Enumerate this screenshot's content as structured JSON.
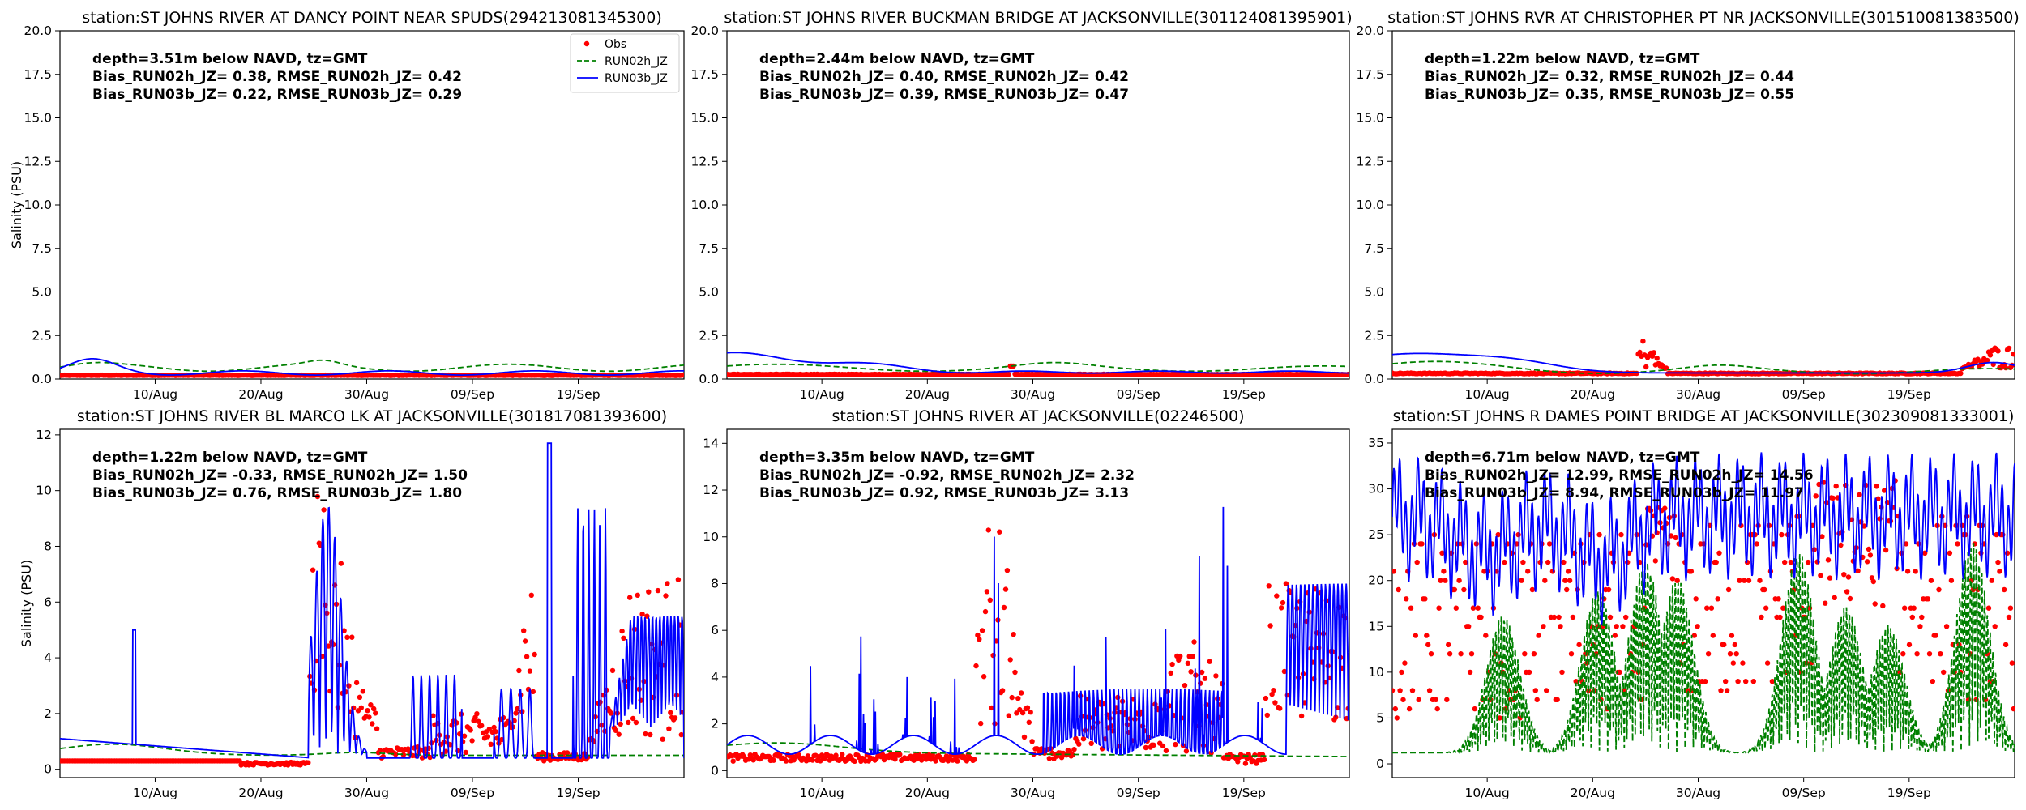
{
  "chart_data": {
    "type": "line",
    "ylabel": "Salinity (PSU)",
    "legend": {
      "placement": "top-right",
      "entries": [
        {
          "label": "Obs",
          "style": "red dots",
          "color": "#ff0000"
        },
        {
          "label": "RUN02h_JZ",
          "style": "green dashed",
          "color": "#008000"
        },
        {
          "label": "RUN03b_JZ",
          "style": "blue solid",
          "color": "#0000ff"
        }
      ]
    },
    "x_ticks": [
      "10/Aug",
      "20/Aug",
      "30/Aug",
      "09/Sep",
      "19/Sep"
    ],
    "x_tick_days": [
      9,
      19,
      29,
      39,
      49
    ],
    "x_range_days": [
      0,
      59
    ],
    "panels": [
      {
        "title": "station:ST JOHNS RIVER AT DANCY POINT NEAR SPUDS(294213081345300)",
        "stats": [
          "depth=3.51m below NAVD, tz=GMT",
          "Bias_RUN02h_JZ=  0.38, RMSE_RUN02h_JZ=  0.42",
          "Bias_RUN03b_JZ=  0.22, RMSE_RUN03b_JZ=  0.29"
        ],
        "ylim": [
          0,
          20
        ],
        "yticks": [
          "0.0",
          "2.5",
          "5.0",
          "7.5",
          "10.0",
          "12.5",
          "15.0",
          "17.5",
          "20.0"
        ],
        "show_ylabel": true,
        "show_legend": true,
        "profile": "dancy"
      },
      {
        "title": "station:ST JOHNS RIVER BUCKMAN BRIDGE AT JACKSONVILLE(301124081395901)",
        "stats": [
          "depth=2.44m below NAVD, tz=GMT",
          "Bias_RUN02h_JZ=  0.40, RMSE_RUN02h_JZ=  0.42",
          "Bias_RUN03b_JZ=  0.39, RMSE_RUN03b_JZ=  0.47"
        ],
        "ylim": [
          0,
          20
        ],
        "yticks": [
          "0.0",
          "2.5",
          "5.0",
          "7.5",
          "10.0",
          "12.5",
          "15.0",
          "17.5",
          "20.0"
        ],
        "show_ylabel": false,
        "show_legend": false,
        "profile": "buckman"
      },
      {
        "title": "station:ST JOHNS RVR AT CHRISTOPHER PT NR JACKSONVILLE(301510081383500)",
        "stats": [
          "depth=1.22m below NAVD, tz=GMT",
          "Bias_RUN02h_JZ=  0.32, RMSE_RUN02h_JZ=  0.44",
          "Bias_RUN03b_JZ=  0.35, RMSE_RUN03b_JZ=  0.55"
        ],
        "ylim": [
          0,
          20
        ],
        "yticks": [
          "0.0",
          "2.5",
          "5.0",
          "7.5",
          "10.0",
          "12.5",
          "15.0",
          "17.5",
          "20.0"
        ],
        "show_ylabel": false,
        "show_legend": false,
        "profile": "christopher"
      },
      {
        "title": "station:ST JOHNS RIVER BL MARCO LK AT JACKSONVILLE(301817081393600)",
        "stats": [
          "depth=1.22m below NAVD, tz=GMT",
          "Bias_RUN02h_JZ= -0.33, RMSE_RUN02h_JZ=  1.50",
          "Bias_RUN03b_JZ=  0.76, RMSE_RUN03b_JZ=  1.80"
        ],
        "ylim": [
          -0.3,
          12.2
        ],
        "yticks": [
          "0",
          "2",
          "4",
          "6",
          "8",
          "10",
          "12"
        ],
        "ytick_values": [
          0,
          2,
          4,
          6,
          8,
          10,
          12
        ],
        "show_ylabel": true,
        "show_legend": false,
        "profile": "marco"
      },
      {
        "title": "station:ST JOHNS RIVER AT JACKSONVILLE(02246500)",
        "stats": [
          "depth=3.35m below NAVD, tz=GMT",
          "Bias_RUN02h_JZ= -0.92, RMSE_RUN02h_JZ=  2.32",
          "Bias_RUN03b_JZ=  0.92, RMSE_RUN03b_JZ=  3.13"
        ],
        "ylim": [
          -0.3,
          14.6
        ],
        "yticks": [
          "0",
          "2",
          "4",
          "6",
          "8",
          "10",
          "12",
          "14"
        ],
        "ytick_values": [
          0,
          2,
          4,
          6,
          8,
          10,
          12,
          14
        ],
        "show_ylabel": false,
        "show_legend": false,
        "profile": "jax"
      },
      {
        "title": "station:ST JOHNS R DAMES POINT BRIDGE AT JACKSONVILLE(302309081333001)",
        "stats": [
          "depth=6.71m below NAVD, tz=GMT",
          "Bias_RUN02h_JZ= 12.99, RMSE_RUN02h_JZ= 14.56",
          "Bias_RUN03b_JZ=  8.94, RMSE_RUN03b_JZ= 11.97"
        ],
        "ylim": [
          -1.5,
          36.5
        ],
        "yticks": [
          "0",
          "5",
          "10",
          "15",
          "20",
          "25",
          "30",
          "35"
        ],
        "ytick_values": [
          0,
          5,
          10,
          15,
          20,
          25,
          30,
          35
        ],
        "show_ylabel": false,
        "show_legend": false,
        "profile": "dames"
      }
    ]
  }
}
